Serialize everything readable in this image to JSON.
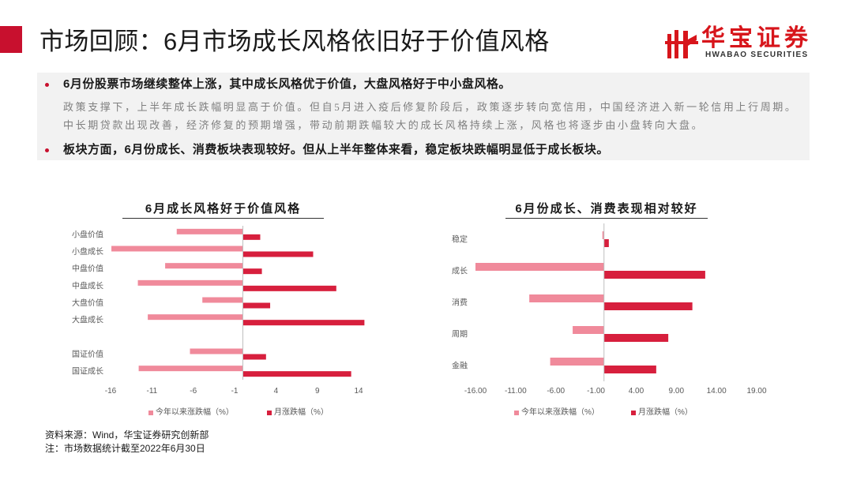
{
  "header": {
    "title": "市场回顾：6月市场成长风格依旧好于价值风格",
    "accent_color": "#c8102e"
  },
  "logo": {
    "name_cn": "华宝证券",
    "name_en": "HWABAO SECURITIES",
    "brand_color": "#d7151b"
  },
  "summary": {
    "bullets": [
      {
        "text": "6月份股票市场继续整体上涨，其中成长风格优于价值，大盘风格好于中小盘风格。",
        "detail": "政策支撑下，上半年成长跌幅明显高于价值。但自5月进入疫后修复阶段后，政策逐步转向宽信用，中国经济进入新一轮信用上行周期。中长期贷款出现改善，经济修复的预期增强，带动前期跌幅较大的成长风格持续上涨，风格也将逐步由小盘转向大盘。"
      },
      {
        "text": "板块方面，6月份成长、消费板块表现较好。但从上半年整体来看，稳定板块跌幅明显低于成长板块。"
      }
    ]
  },
  "chart_data": [
    {
      "type": "bar",
      "orientation": "horizontal",
      "title": "6月成长风格好于价值风格",
      "categories": [
        "小盘价值",
        "小盘成长",
        "中盘价值",
        "中盘成长",
        "大盘价值",
        "大盘成长",
        "",
        "国证价值",
        "国证成长"
      ],
      "series": [
        {
          "name": "今年以来涨跌幅（%）",
          "color": "#f08a9b",
          "values": [
            -8.0,
            -15.9,
            -9.4,
            -12.7,
            -4.9,
            -11.5,
            null,
            -6.4,
            -12.6
          ]
        },
        {
          "name": "月涨跌幅（%）",
          "color": "#d71f3d",
          "values": [
            2.1,
            8.5,
            2.3,
            11.3,
            3.3,
            14.7,
            null,
            2.8,
            13.1
          ]
        }
      ],
      "x_ticks": [
        -16,
        -11,
        -6,
        -1,
        4,
        9,
        14
      ],
      "x_tick_labels": [
        "-16",
        "-11",
        "-6",
        "-1",
        "4",
        "9",
        "14"
      ],
      "xlim": [
        -16,
        16
      ],
      "grid": false,
      "legend": "bottom"
    },
    {
      "type": "bar",
      "orientation": "horizontal",
      "title": "6月份成长、消费表现相对较好",
      "categories": [
        "稳定",
        "成长",
        "消费",
        "周期",
        "金融"
      ],
      "series": [
        {
          "name": "今年以来涨跌幅（%）",
          "color": "#f08a9b",
          "values": [
            -0.2,
            -16.0,
            -9.3,
            -3.9,
            -6.7
          ]
        },
        {
          "name": "月涨跌幅（%）",
          "color": "#d71f3d",
          "values": [
            0.6,
            12.6,
            11.0,
            8.0,
            6.5
          ]
        }
      ],
      "x_ticks": [
        -16,
        -11,
        -6,
        -1,
        4,
        9,
        14,
        19
      ],
      "x_tick_labels": [
        "-16.00",
        "-11.00",
        "-6.00",
        "-1.00",
        "4.00",
        "9.00",
        "14.00",
        "19.00"
      ],
      "xlim": [
        -16,
        19
      ],
      "grid": false,
      "legend": "bottom"
    }
  ],
  "footer": {
    "source": "资料来源：Wind，华宝证券研究创新部",
    "note": "注：市场数据统计截至2022年6月30日"
  }
}
